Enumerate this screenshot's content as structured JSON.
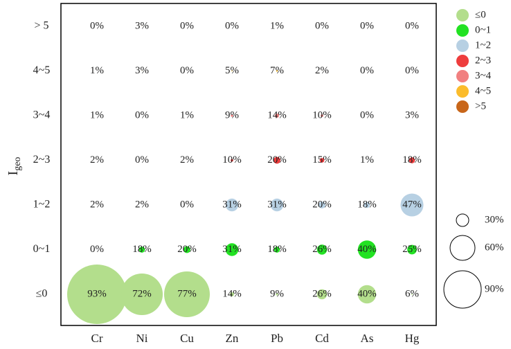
{
  "chart_data": {
    "type": "bubble",
    "categories": [
      "Cr",
      "Ni",
      "Cu",
      "Zn",
      "Pb",
      "Cd",
      "As",
      "Hg"
    ],
    "ycategories": [
      "≤0",
      "0~1",
      "1~2",
      "2~3",
      "3~4",
      "4~5",
      "> 5"
    ],
    "ylabel": "I",
    "ylabel_subscript": "geo",
    "series": [
      {
        "name": "≤0",
        "color": "#b3de8c",
        "values": [
          93,
          72,
          77,
          14,
          9,
          26,
          40,
          6
        ],
        "value_labels": [
          "93%",
          "72%",
          "77%",
          "14%",
          "9%",
          "26%",
          "40%",
          "6%"
        ]
      },
      {
        "name": "0~1",
        "color": "#22e222",
        "values": [
          0,
          18,
          20,
          31,
          18,
          26,
          40,
          25
        ],
        "value_labels": [
          "0%",
          "18%",
          "20%",
          "31%",
          "18%",
          "26%",
          "40%",
          "25%"
        ]
      },
      {
        "name": "1~2",
        "color": "#b7d0e3",
        "values": [
          2,
          2,
          0,
          31,
          31,
          20,
          18,
          47
        ],
        "value_labels": [
          "2%",
          "2%",
          "0%",
          "31%",
          "31%",
          "20%",
          "18%",
          "47%"
        ]
      },
      {
        "name": "2~3",
        "color": "#ee3d3d",
        "values": [
          2,
          0,
          2,
          10,
          20,
          15,
          1,
          18
        ],
        "value_labels": [
          "2%",
          "0%",
          "2%",
          "10%",
          "20%",
          "15%",
          "1%",
          "18%"
        ]
      },
      {
        "name": "3~4",
        "color": "#f18080",
        "values": [
          1,
          0,
          1,
          9,
          14,
          10,
          0,
          3
        ],
        "value_labels": [
          "1%",
          "0%",
          "1%",
          "9%",
          "14%",
          "10%",
          "0%",
          "3%"
        ]
      },
      {
        "name": "4~5",
        "color": "#fbbc2c",
        "values": [
          1,
          3,
          0,
          5,
          7,
          2,
          0,
          0
        ],
        "value_labels": [
          "1%",
          "3%",
          "0%",
          "5%",
          "7%",
          "2%",
          "0%",
          "0%"
        ]
      },
      {
        "name": ">5",
        "color": "#c8661a",
        "values": [
          0,
          3,
          0,
          0,
          1,
          0,
          0,
          0
        ],
        "value_labels": [
          "0%",
          "3%",
          "0%",
          "0%",
          "1%",
          "0%",
          "0%",
          "0%"
        ]
      }
    ],
    "size_legend": [
      {
        "value": 30,
        "label": "30%"
      },
      {
        "value": 60,
        "label": "60%"
      },
      {
        "value": 90,
        "label": "90%"
      }
    ]
  }
}
